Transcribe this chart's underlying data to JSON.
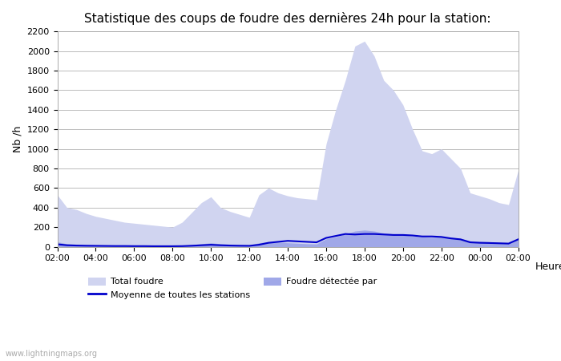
{
  "title": "Statistique des coups de foudre des dernières 24h pour la station:",
  "xlabel": "Heure",
  "ylabel": "Nb /h",
  "xlim": [
    0,
    24
  ],
  "ylim": [
    0,
    2200
  ],
  "yticks": [
    0,
    200,
    400,
    600,
    800,
    1000,
    1200,
    1400,
    1600,
    1800,
    2000,
    2200
  ],
  "xtick_labels": [
    "02:00",
    "04:00",
    "06:00",
    "08:00",
    "10:00",
    "12:00",
    "14:00",
    "16:00",
    "18:00",
    "20:00",
    "22:00",
    "00:00",
    "02:00"
  ],
  "watermark": "www.lightningmaps.org",
  "legend_entries": [
    "Total foudre",
    "Foudre détectée par",
    "Moyenne de toutes les stations"
  ],
  "color_total": "#d0d4f0",
  "color_detected": "#a0a8e8",
  "color_mean": "#0000cc",
  "background_color": "#ffffff",
  "hours": [
    0,
    0.5,
    1,
    1.5,
    2,
    2.5,
    3,
    3.5,
    4,
    4.5,
    5,
    5.5,
    6,
    6.5,
    7,
    7.5,
    8,
    8.5,
    9,
    9.5,
    10,
    10.5,
    11,
    11.5,
    12,
    12.5,
    13,
    13.5,
    14,
    14.5,
    15,
    15.5,
    16,
    16.5,
    17,
    17.5,
    18,
    18.5,
    19,
    19.5,
    20,
    20.5,
    21,
    21.5,
    22,
    22.5,
    23,
    23.5,
    24
  ],
  "total_foudre": [
    530,
    400,
    380,
    340,
    310,
    290,
    270,
    250,
    240,
    230,
    220,
    210,
    200,
    250,
    350,
    450,
    510,
    400,
    360,
    330,
    300,
    530,
    600,
    550,
    520,
    500,
    490,
    480,
    1050,
    1400,
    1700,
    2050,
    2100,
    1950,
    1700,
    1600,
    1450,
    1200,
    980,
    950,
    1000,
    900,
    800,
    550,
    520,
    490,
    450,
    430,
    780
  ],
  "foudre_detectee": [
    50,
    30,
    25,
    20,
    18,
    16,
    15,
    14,
    12,
    11,
    10,
    10,
    10,
    12,
    20,
    30,
    40,
    30,
    25,
    20,
    18,
    40,
    50,
    45,
    40,
    35,
    30,
    28,
    80,
    100,
    130,
    160,
    170,
    160,
    140,
    130,
    120,
    110,
    100,
    95,
    100,
    95,
    85,
    60,
    55,
    50,
    45,
    42,
    80
  ],
  "moyenne": [
    25,
    15,
    12,
    10,
    9,
    8,
    7,
    7,
    6,
    6,
    5,
    5,
    5,
    6,
    10,
    15,
    20,
    15,
    12,
    10,
    9,
    20,
    40,
    50,
    60,
    55,
    50,
    45,
    90,
    110,
    130,
    125,
    130,
    130,
    125,
    120,
    120,
    115,
    105,
    105,
    100,
    85,
    75,
    45,
    40,
    38,
    35,
    32,
    75
  ]
}
